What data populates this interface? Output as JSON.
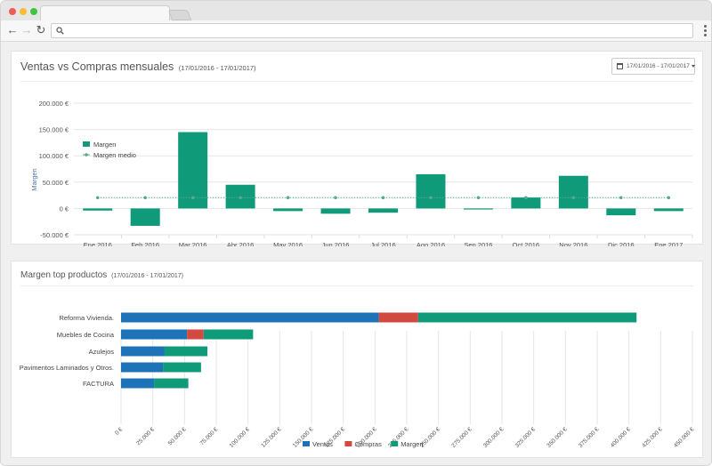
{
  "browser": {
    "url": ""
  },
  "panel1": {
    "title": "Ventas vs Compras mensuales",
    "subtitle": "(17/01/2016 - 17/01/2017)",
    "date_range_button": "17/01/2016 - 17/01/2017"
  },
  "panel2": {
    "title": "Margen top productos",
    "subtitle": "(17/01/2016 - 17/01/2017)"
  },
  "colors": {
    "margen": "#0f9b7a",
    "ventas": "#1e73b8",
    "compras": "#d1493f",
    "average_line": "#5aa88f"
  },
  "chart_data": [
    {
      "type": "bar",
      "ylabel": "Margen",
      "categories": [
        "Ene 2016",
        "Feb 2016",
        "Mar 2016",
        "Abr 2016",
        "May 2016",
        "Jun 2016",
        "Jul 2016",
        "Ago 2016",
        "Sep 2016",
        "Oct 2016",
        "Nov 2016",
        "Dic 2016",
        "Ene 2017"
      ],
      "series": [
        {
          "name": "Margen",
          "values": [
            -4000,
            -33000,
            145000,
            45000,
            -5000,
            -10000,
            -8000,
            65000,
            -2000,
            21000,
            62000,
            -13000,
            -5000
          ]
        },
        {
          "name": "Margen medio",
          "type": "line",
          "values": [
            20500,
            20500,
            20500,
            20500,
            20500,
            20500,
            20500,
            20500,
            20500,
            20500,
            20500,
            20500,
            20500
          ]
        }
      ],
      "ylim": [
        -50000,
        200000
      ],
      "yticks": [
        -50000,
        0,
        50000,
        100000,
        150000,
        200000
      ],
      "ytick_labels": [
        "-50.000 €",
        "0 €",
        "50.000 €",
        "100.000 €",
        "150.000 €",
        "200.000 €"
      ],
      "legend": "top-left",
      "grid": true
    },
    {
      "type": "bar",
      "orientation": "horizontal",
      "stacked": true,
      "categories": [
        "Reforma Vivienda.",
        "Muebles de Cocina",
        "Azulejos",
        "Pavimentos Laminados y Otros.",
        "FACTURA"
      ],
      "series": [
        {
          "name": "Ventas",
          "values": [
            203000,
            52000,
            34000,
            33000,
            26000
          ]
        },
        {
          "name": "Compras",
          "values": [
            31000,
            13000,
            0,
            0,
            0
          ]
        },
        {
          "name": "Margen",
          "values": [
            172000,
            39000,
            34000,
            30000,
            27000
          ]
        }
      ],
      "xlim": [
        0,
        450000
      ],
      "xticks": [
        0,
        25000,
        50000,
        75000,
        100000,
        125000,
        150000,
        175000,
        200000,
        225000,
        250000,
        275000,
        300000,
        325000,
        350000,
        375000,
        400000,
        425000,
        450000
      ],
      "xtick_labels": [
        "0 €",
        "25.000 €",
        "50.000 €",
        "75.000 €",
        "100.000 €",
        "125.000 €",
        "150.000 €",
        "175.000 €",
        "200.000 €",
        "225.000 €",
        "250.000 €",
        "275.000 €",
        "300.000 €",
        "325.000 €",
        "350.000 €",
        "375.000 €",
        "400.000 €",
        "425.000 €",
        "450.000 €"
      ],
      "legend": "bottom-center",
      "grid": true
    }
  ]
}
